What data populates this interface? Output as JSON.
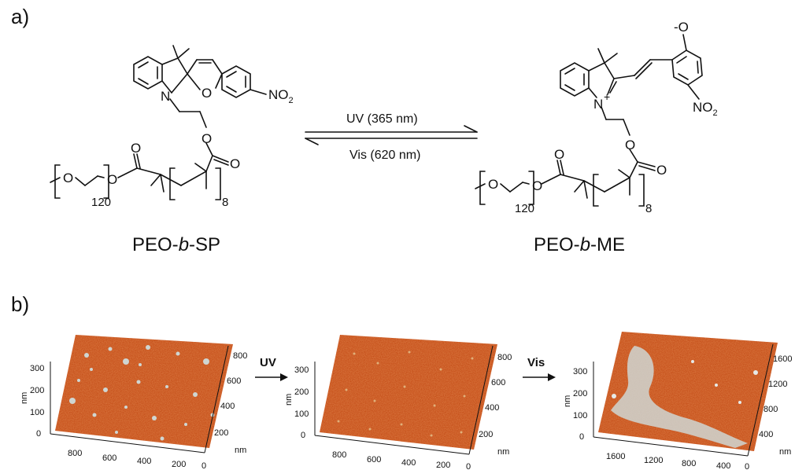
{
  "panels": {
    "a": "a)",
    "b": "b)"
  },
  "scheme": {
    "left_compound": {
      "name_prefix": "PEO-",
      "name_italic": "b",
      "name_suffix": "-SP"
    },
    "right_compound": {
      "name_prefix": "PEO-",
      "name_italic": "b",
      "name_suffix": "-ME"
    },
    "forward_condition": "UV (365 nm)",
    "reverse_condition": "Vis (620 nm)",
    "atoms": {
      "nitrogen": "N",
      "oxygen": "O",
      "nitro": "NO",
      "nitro_sub": "2",
      "phenolate": "-O",
      "plus": "+",
      "peo_repeat": "120",
      "block_repeat": "8"
    }
  },
  "afm": {
    "unit": "nm",
    "arrow_1": "UV",
    "arrow_2": "Vis",
    "images": [
      {
        "z_ticks": [
          "0",
          "100",
          "200",
          "300"
        ],
        "x_ticks": [
          "800",
          "600",
          "400",
          "200",
          "0"
        ],
        "y_ticks": [
          "200",
          "400",
          "600",
          "800"
        ],
        "state": "before UV"
      },
      {
        "z_ticks": [
          "0",
          "100",
          "200",
          "300"
        ],
        "x_ticks": [
          "800",
          "600",
          "400",
          "200",
          "0"
        ],
        "y_ticks": [
          "200",
          "400",
          "600",
          "800"
        ],
        "state": "after UV"
      },
      {
        "z_ticks": [
          "0",
          "100",
          "200",
          "300"
        ],
        "x_ticks": [
          "1600",
          "1200",
          "800",
          "400",
          "0"
        ],
        "y_ticks": [
          "400",
          "800",
          "1200",
          "1600"
        ],
        "state": "after Vis"
      }
    ]
  },
  "colors": {
    "afm_surface": "#c0440f",
    "afm_surface_dark": "#8e2a06",
    "afm_particle": "#cfd6d2",
    "line": "#111111"
  }
}
